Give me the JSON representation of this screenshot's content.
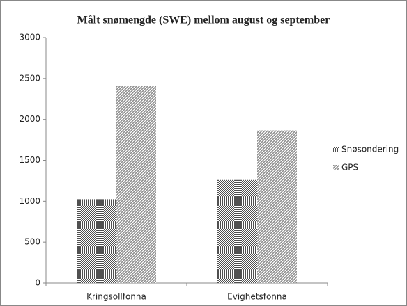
{
  "chart_data": {
    "type": "bar",
    "title": "Målt snømengde (SWE) mellom august og september",
    "categories": [
      "Kringsollfonna",
      "Evighetsfonna"
    ],
    "series": [
      {
        "name": "Snøsondering",
        "color": "#505050",
        "values": [
          1025,
          1260
        ]
      },
      {
        "name": "GPS",
        "color": "#8c8c8c",
        "values": [
          2410,
          1865
        ]
      }
    ],
    "ylim": [
      0,
      3000
    ],
    "yticks": [
      0,
      500,
      1000,
      1500,
      2000,
      2500,
      3000
    ],
    "grid": false,
    "legend": "right"
  }
}
